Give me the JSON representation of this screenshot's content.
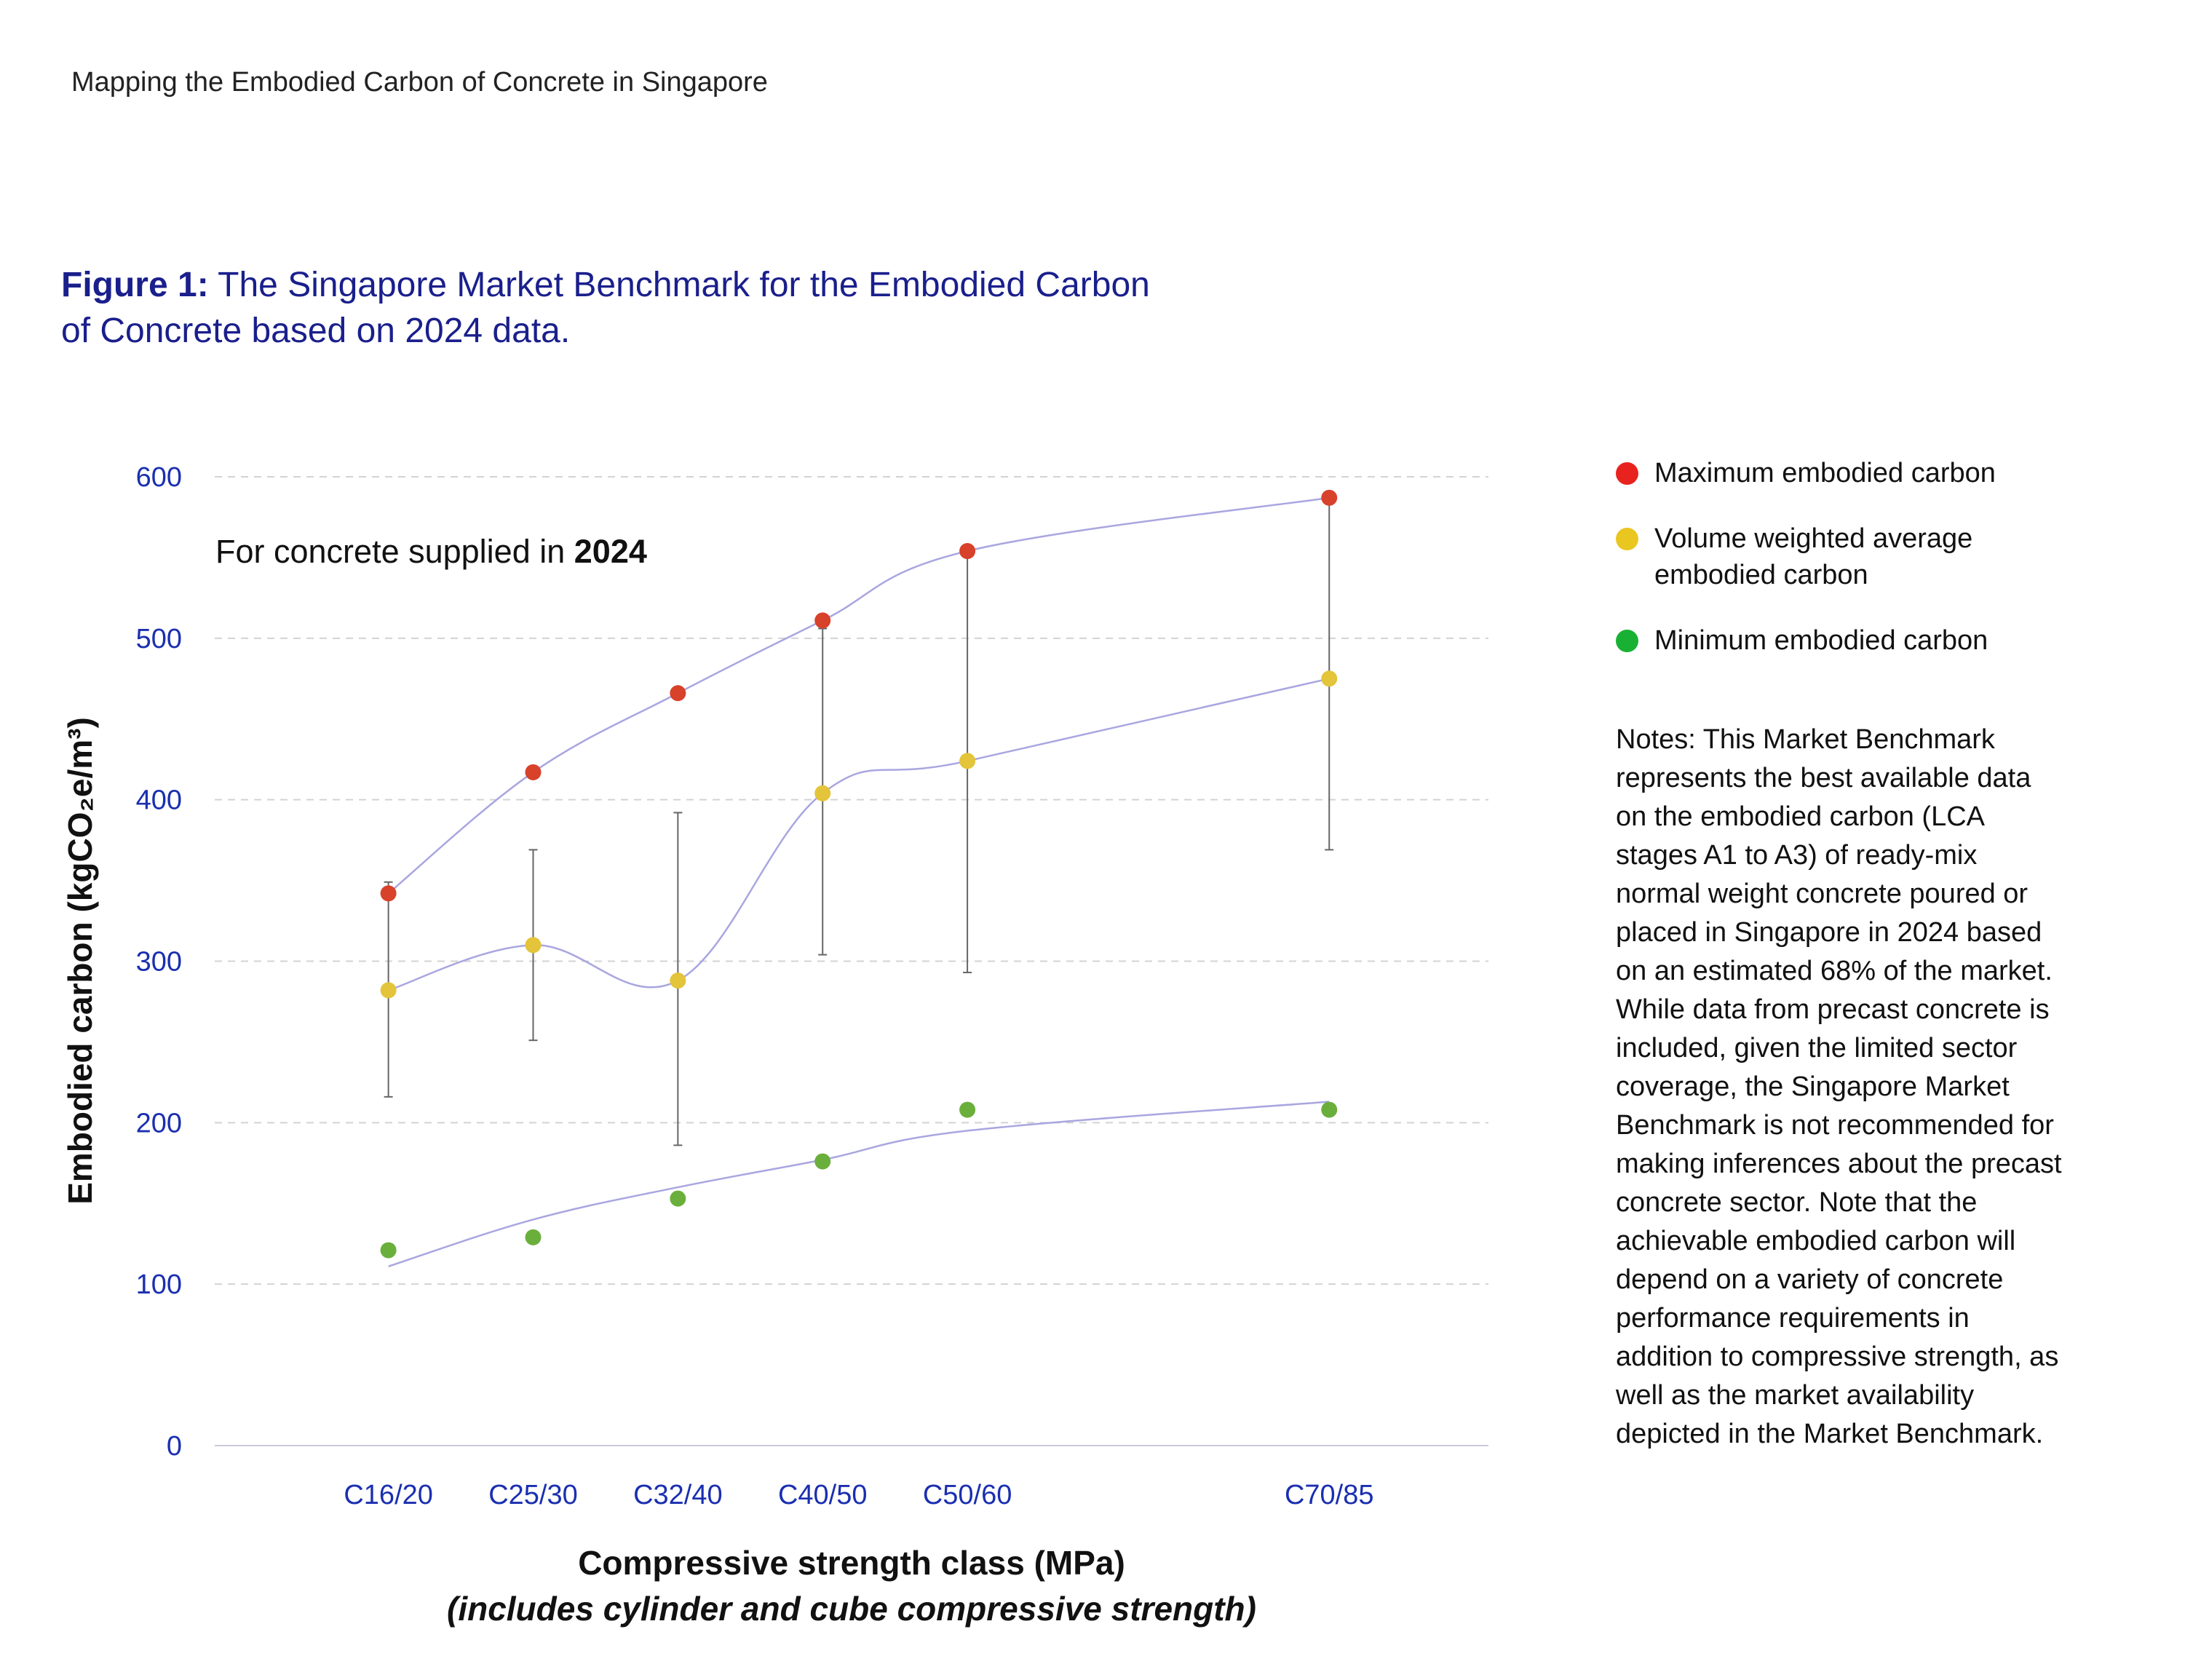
{
  "header": {
    "document_title": "Mapping the Embodied Carbon of Concrete in Singapore"
  },
  "figure": {
    "label": "Figure 1:",
    "caption_line1": "The Singapore Market Benchmark for the Embodied Carbon",
    "caption_line2": "of Concrete based on 2024 data."
  },
  "annotation": {
    "prefix": "For concrete supplied in ",
    "year": "2024"
  },
  "legend": [
    {
      "label": "Maximum embodied carbon",
      "color": "#e8231f"
    },
    {
      "label": "Volume weighted average embodied carbon",
      "color": "#eac621"
    },
    {
      "label": "Minimum embodied carbon",
      "color": "#19b133"
    }
  ],
  "notes": "Notes: This Market Benchmark represents the best available data on the embodied carbon (LCA stages A1 to A3) of ready-mix normal weight concrete poured or placed in Singapore in 2024 based on an estimated 68% of the market. While data from precast concrete is included, given the limited sector coverage, the Singapore Market Benchmark is not recommended for making inferences about the precast concrete sector. Note that the achievable embodied carbon will depend on a variety of concrete performance requirements in addition to compressive strength, as well as the market availability depicted in the Market Benchmark.",
  "axes": {
    "xlabel": "Compressive strength class (MPa)",
    "xsublabel": "(includes cylinder and cube compressive strength)",
    "ylabel": "Embodied carbon (kgCO₂e/m³)"
  },
  "chart_data": {
    "type": "scatter",
    "categories": [
      "C16/20",
      "C25/30",
      "C32/40",
      "C40/50",
      "C50/60",
      "C70/85"
    ],
    "x": [
      20,
      30,
      40,
      50,
      60,
      85
    ],
    "ylim": [
      0,
      600
    ],
    "yticks": [
      0,
      100,
      200,
      300,
      400,
      500,
      600
    ],
    "grid": true,
    "legend_position": "right",
    "series": [
      {
        "name": "Maximum embodied carbon",
        "color": "#d8412a",
        "values": [
          342,
          417,
          466,
          511,
          554,
          587
        ]
      },
      {
        "name": "Volume weighted average embodied carbon",
        "color": "#e3c43a",
        "values": [
          282,
          310,
          288,
          404,
          424,
          475
        ]
      },
      {
        "name": "Minimum embodied carbon",
        "color": "#6aaf3c",
        "values": [
          121,
          129,
          153,
          176,
          208,
          208
        ]
      }
    ],
    "error_bars": [
      {
        "low": 216,
        "high": 349
      },
      {
        "low": 251,
        "high": 369
      },
      {
        "low": 186,
        "high": 392
      },
      {
        "low": 304,
        "high": 506
      },
      {
        "low": 293,
        "high": 554
      },
      {
        "low": 369,
        "high": 587
      }
    ],
    "trend_lines": [
      {
        "color": "#a9a6e0",
        "values": [
          342,
          417,
          466,
          511,
          554,
          587
        ]
      },
      {
        "color": "#a9a6e0",
        "values": [
          282,
          310,
          288,
          404,
          424,
          475
        ]
      },
      {
        "color": "#a9a6e0",
        "values": [
          111,
          140,
          160,
          177,
          195,
          213
        ]
      }
    ]
  }
}
